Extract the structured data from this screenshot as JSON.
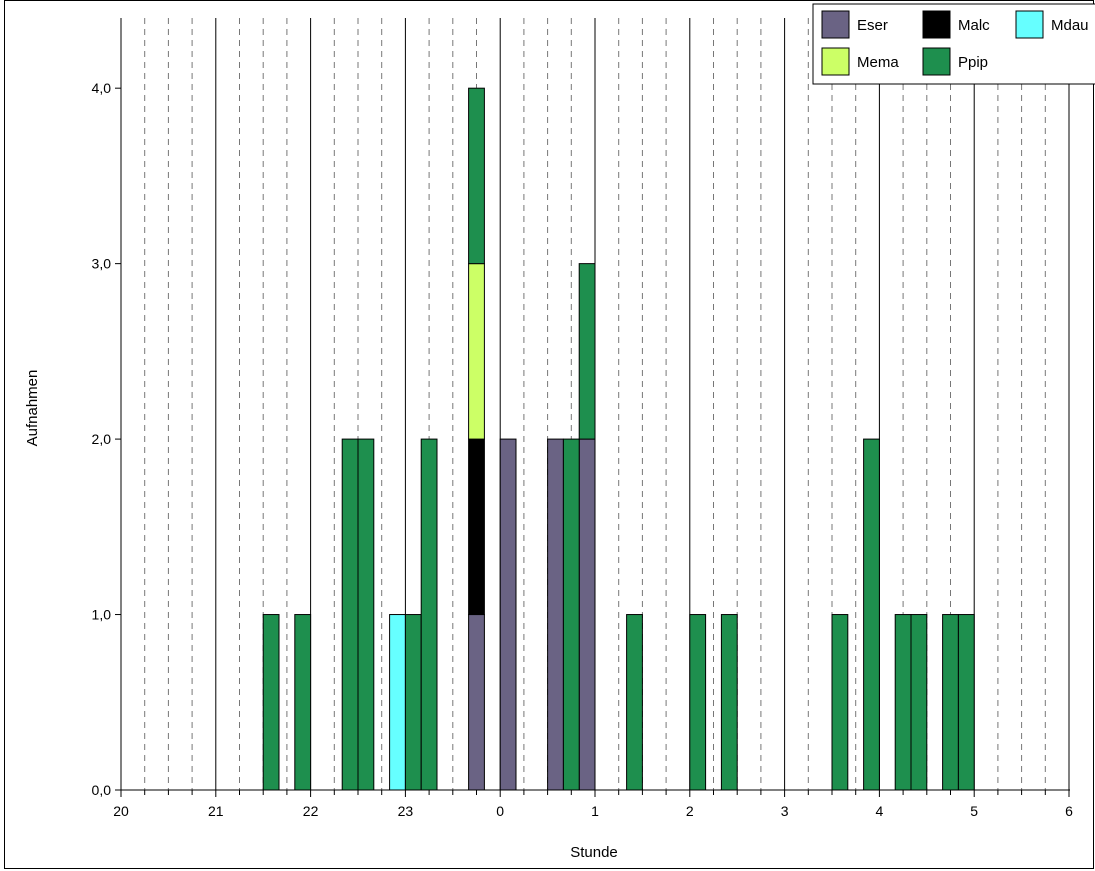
{
  "chart_data": {
    "type": "bar",
    "stacked": true,
    "title": "",
    "xlabel": "Stunde",
    "ylabel": "Aufnahmen",
    "ylim": [
      0,
      4.4
    ],
    "y_ticks": [
      "0,0",
      "1,0",
      "2,0",
      "3,0",
      "4,0"
    ],
    "x_hour_ticks": [
      "20",
      "21",
      "22",
      "23",
      "0",
      "1",
      "2",
      "3",
      "4",
      "5",
      "6"
    ],
    "bin_minutes": 10,
    "grid": {
      "hours": "solid",
      "sub_intervals": "dashed",
      "interval_minutes": 15
    },
    "legend_position": "top-right",
    "colors": {
      "Eser": "#6a6384",
      "Malc": "#000000",
      "Mdau": "#66ffff",
      "Mema": "#ccff66",
      "Ppip": "#1e8f4e"
    },
    "series": [
      {
        "name": "Eser",
        "points": [
          [
            "23:40",
            1
          ],
          [
            "00:00",
            2
          ],
          [
            "00:30",
            2
          ],
          [
            "00:50",
            2
          ]
        ]
      },
      {
        "name": "Malc",
        "points": [
          [
            "23:40",
            1
          ]
        ]
      },
      {
        "name": "Mdau",
        "points": [
          [
            "22:50",
            1
          ]
        ]
      },
      {
        "name": "Mema",
        "points": [
          [
            "23:40",
            1
          ]
        ]
      },
      {
        "name": "Ppip",
        "points": [
          [
            "21:30",
            1
          ],
          [
            "21:50",
            1
          ],
          [
            "22:20",
            2
          ],
          [
            "22:30",
            2
          ],
          [
            "23:00",
            1
          ],
          [
            "23:10",
            2
          ],
          [
            "23:40",
            1
          ],
          [
            "00:40",
            2
          ],
          [
            "00:50",
            1
          ],
          [
            "01:20",
            1
          ],
          [
            "02:00",
            1
          ],
          [
            "02:20",
            1
          ],
          [
            "03:30",
            1
          ],
          [
            "03:50",
            2
          ],
          [
            "04:10",
            1
          ],
          [
            "04:20",
            1
          ],
          [
            "04:40",
            1
          ],
          [
            "04:50",
            1
          ]
        ]
      }
    ],
    "legend": [
      "Eser",
      "Malc",
      "Mdau",
      "Mema",
      "Ppip"
    ]
  }
}
